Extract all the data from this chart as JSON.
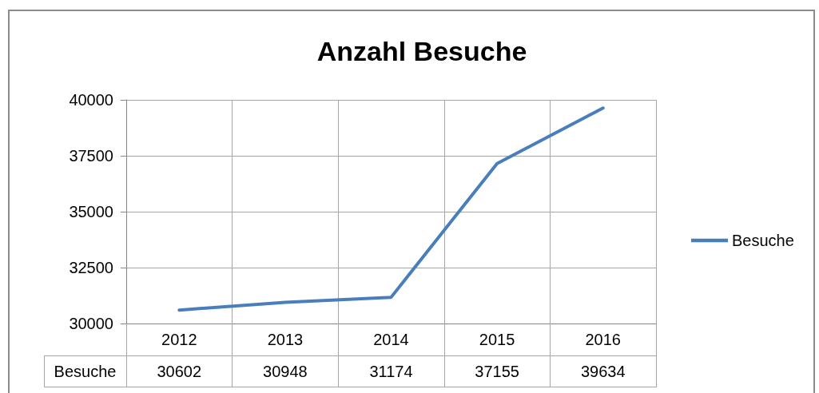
{
  "chart_data": {
    "type": "line",
    "title": "Anzahl Besuche",
    "categories": [
      "2012",
      "2013",
      "2014",
      "2015",
      "2016"
    ],
    "series": [
      {
        "name": "Besuche",
        "color": "#4a7ebb",
        "values": [
          30602,
          30948,
          31174,
          37155,
          39634
        ]
      }
    ],
    "ylim": [
      30000,
      40000
    ],
    "yticks": [
      30000,
      32500,
      35000,
      37500,
      40000
    ],
    "grid": true,
    "legend": "right",
    "marker": "none",
    "line_style": "solid",
    "data_labels": true
  }
}
